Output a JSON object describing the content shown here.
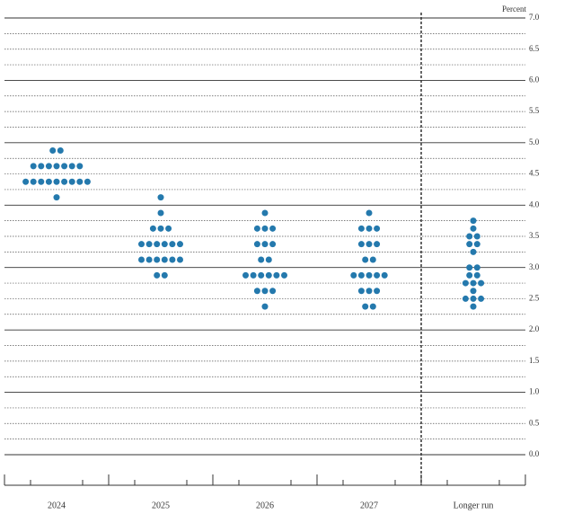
{
  "chart_data": {
    "type": "dot",
    "y_label": "Percent",
    "color": "#2479ad",
    "categories": [
      "2024",
      "2025",
      "2026",
      "2027",
      "Longer run"
    ],
    "dots": [
      [
        4.875,
        4.875,
        4.625,
        4.625,
        4.625,
        4.625,
        4.625,
        4.625,
        4.625,
        4.375,
        4.375,
        4.375,
        4.375,
        4.375,
        4.375,
        4.375,
        4.375,
        4.375,
        4.125
      ],
      [
        4.125,
        3.875,
        3.625,
        3.625,
        3.625,
        3.375,
        3.375,
        3.375,
        3.375,
        3.375,
        3.375,
        3.125,
        3.125,
        3.125,
        3.125,
        3.125,
        3.125,
        2.875,
        2.875
      ],
      [
        3.875,
        3.625,
        3.625,
        3.625,
        3.375,
        3.375,
        3.375,
        3.125,
        3.125,
        2.875,
        2.875,
        2.875,
        2.875,
        2.875,
        2.875,
        2.625,
        2.625,
        2.625,
        2.375
      ],
      [
        3.875,
        3.625,
        3.625,
        3.625,
        3.375,
        3.375,
        3.375,
        3.125,
        3.125,
        2.875,
        2.875,
        2.875,
        2.875,
        2.875,
        2.625,
        2.625,
        2.625,
        2.375,
        2.375
      ],
      [
        3.75,
        3.625,
        3.5,
        3.5,
        3.375,
        3.375,
        3.25,
        3.0,
        3.0,
        2.875,
        2.875,
        2.75,
        2.75,
        2.75,
        2.625,
        2.5,
        2.5,
        2.5,
        2.375
      ]
    ],
    "ylim": [
      0,
      7
    ],
    "yticks": [
      {
        "value": 0,
        "label": "0.0"
      },
      {
        "value": 0.5,
        "label": "0.5"
      },
      {
        "value": 1,
        "label": "1.0"
      },
      {
        "value": 1.5,
        "label": "1.5"
      },
      {
        "value": 2,
        "label": "2.0"
      },
      {
        "value": 2.5,
        "label": "2.5"
      },
      {
        "value": 3,
        "label": "3.0"
      },
      {
        "value": 3.5,
        "label": "3.5"
      },
      {
        "value": 4,
        "label": "4.0"
      },
      {
        "value": 4.5,
        "label": "4.5"
      },
      {
        "value": 5,
        "label": "5.0"
      },
      {
        "value": 5.5,
        "label": "5.5"
      },
      {
        "value": 6,
        "label": "6.0"
      },
      {
        "value": 6.5,
        "label": "6.5"
      },
      {
        "value": 7,
        "label": "7.0"
      }
    ]
  }
}
